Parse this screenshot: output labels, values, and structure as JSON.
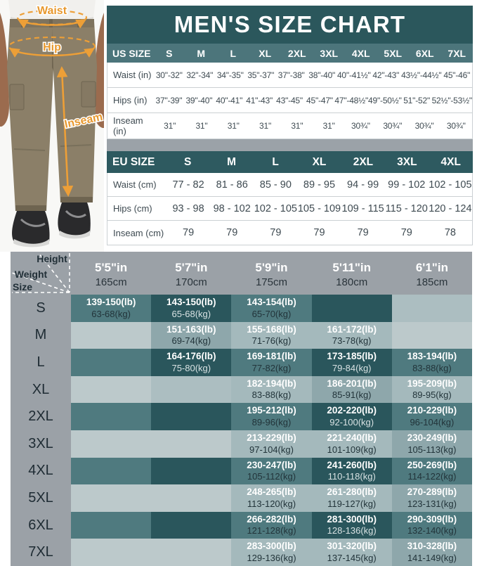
{
  "title": "MEN'S SIZE CHART",
  "photo": {
    "labels": {
      "waist": "Waist",
      "hip": "Hip",
      "inseam": "Inseam"
    },
    "annotation_color": "#ED9F37",
    "pants_color": "#8B7F68"
  },
  "us_table": {
    "header_label": "US SIZE",
    "sizes": [
      "S",
      "M",
      "L",
      "XL",
      "2XL",
      "3XL",
      "4XL",
      "5XL",
      "6XL",
      "7XL"
    ],
    "rows": [
      {
        "label": "Waist (in)",
        "values": [
          "30\"-32\"",
          "32\"-34\"",
          "34\"-35\"",
          "35\"-37\"",
          "37\"-38\"",
          "38\"-40\"",
          "40\"-41½\"",
          "42\"-43\"",
          "43½\"-44½\"",
          "45\"-46\""
        ]
      },
      {
        "label": "Hips (in)",
        "values": [
          "37\"-39\"",
          "39\"-40\"",
          "40\"-41\"",
          "41\"-43\"",
          "43\"-45\"",
          "45\"-47\"",
          "47\"-48½\"",
          "49\"-50½\"",
          "51\"-52\"",
          "52½\"-53½\""
        ]
      },
      {
        "label": "Inseam (in)",
        "values": [
          "31\"",
          "31\"",
          "31\"",
          "31\"",
          "31\"",
          "31\"",
          "30¾\"",
          "30¾\"",
          "30¾\"",
          "30¾\""
        ]
      }
    ]
  },
  "eu_table": {
    "header_label": "EU SIZE",
    "sizes": [
      "S",
      "M",
      "L",
      "XL",
      "2XL",
      "3XL",
      "4XL"
    ],
    "rows": [
      {
        "label": "Waist (cm)",
        "values": [
          "77 - 82",
          "81 - 86",
          "85 - 90",
          "89 - 95",
          "94 - 99",
          "99 - 102",
          "102 - 105"
        ]
      },
      {
        "label": "Hips (cm)",
        "values": [
          "93 - 98",
          "98 - 102",
          "102 - 105",
          "105 - 109",
          "109 - 115",
          "115 - 120",
          "120 - 124"
        ]
      },
      {
        "label": "Inseam (cm)",
        "values": [
          "79",
          "79",
          "79",
          "79",
          "79",
          "79",
          "78"
        ]
      }
    ]
  },
  "matrix": {
    "corner": {
      "height": "Height",
      "weight": "Weight",
      "size": "Size"
    },
    "columns": [
      {
        "ft": "5'5\"in",
        "cm": "165cm"
      },
      {
        "ft": "5'7\"in",
        "cm": "170cm"
      },
      {
        "ft": "5'9\"in",
        "cm": "175cm"
      },
      {
        "ft": "5'11\"in",
        "cm": "180cm"
      },
      {
        "ft": "6'1\"in",
        "cm": "185cm"
      }
    ],
    "rows": [
      {
        "label": "S",
        "cells": [
          {
            "lb": "139-150(lb)",
            "kg": "63-68(kg)",
            "tone": "mid"
          },
          {
            "lb": "143-150(lb)",
            "kg": "65-68(kg)",
            "tone": "dark"
          },
          {
            "lb": "143-154(lb)",
            "kg": "65-70(kg)",
            "tone": "mid"
          },
          {
            "tone": "dark"
          },
          {
            "tone": "light2"
          }
        ]
      },
      {
        "label": "M",
        "cells": [
          {
            "tone": "light"
          },
          {
            "lb": "151-163(lb)",
            "kg": "69-74(kg)",
            "tone": "mid2"
          },
          {
            "lb": "155-168(lb)",
            "kg": "71-76(kg)",
            "tone": "mlight"
          },
          {
            "lb": "161-172(lb)",
            "kg": "73-78(kg)",
            "tone": "mlight"
          },
          {
            "tone": "light"
          }
        ]
      },
      {
        "label": "L",
        "cells": [
          {
            "tone": "mid"
          },
          {
            "lb": "164-176(lb)",
            "kg": "75-80(kg)",
            "tone": "dark"
          },
          {
            "lb": "169-181(lb)",
            "kg": "77-82(kg)",
            "tone": "mid"
          },
          {
            "lb": "173-185(lb)",
            "kg": "79-84(kg)",
            "tone": "dark"
          },
          {
            "lb": "183-194(lb)",
            "kg": "83-88(kg)",
            "tone": "mid"
          }
        ]
      },
      {
        "label": "XL",
        "cells": [
          {
            "tone": "light"
          },
          {
            "tone": "light2"
          },
          {
            "lb": "182-194(lb)",
            "kg": "83-88(kg)",
            "tone": "mlight"
          },
          {
            "lb": "186-201(lb)",
            "kg": "85-91(kg)",
            "tone": "mid2"
          },
          {
            "lb": "195-209(lb)",
            "kg": "89-95(kg)",
            "tone": "mlight"
          }
        ]
      },
      {
        "label": "2XL",
        "cells": [
          {
            "tone": "mid"
          },
          {
            "tone": "dark"
          },
          {
            "lb": "195-212(lb)",
            "kg": "89-96(kg)",
            "tone": "mid"
          },
          {
            "lb": "202-220(lb)",
            "kg": "92-100(kg)",
            "tone": "dark"
          },
          {
            "lb": "210-229(lb)",
            "kg": "96-104(kg)",
            "tone": "mid"
          }
        ]
      },
      {
        "label": "3XL",
        "cells": [
          {
            "tone": "light"
          },
          {
            "tone": "light"
          },
          {
            "lb": "213-229(lb)",
            "kg": "97-104(kg)",
            "tone": "mlight"
          },
          {
            "lb": "221-240(lb)",
            "kg": "101-109(kg)",
            "tone": "mlight"
          },
          {
            "lb": "230-249(lb)",
            "kg": "105-113(kg)",
            "tone": "mid2"
          }
        ]
      },
      {
        "label": "4XL",
        "cells": [
          {
            "tone": "mid"
          },
          {
            "tone": "dark"
          },
          {
            "lb": "230-247(lb)",
            "kg": "105-112(kg)",
            "tone": "mid"
          },
          {
            "lb": "241-260(lb)",
            "kg": "110-118(kg)",
            "tone": "dark"
          },
          {
            "lb": "250-269(lb)",
            "kg": "114-122(kg)",
            "tone": "mid"
          }
        ]
      },
      {
        "label": "5XL",
        "cells": [
          {
            "tone": "light"
          },
          {
            "tone": "light"
          },
          {
            "lb": "248-265(lb)",
            "kg": "113-120(kg)",
            "tone": "mlight"
          },
          {
            "lb": "261-280(lb)",
            "kg": "119-127(kg)",
            "tone": "mlight"
          },
          {
            "lb": "270-289(lb)",
            "kg": "123-131(kg)",
            "tone": "mid2"
          }
        ]
      },
      {
        "label": "6XL",
        "cells": [
          {
            "tone": "mid"
          },
          {
            "tone": "dark"
          },
          {
            "lb": "266-282(lb)",
            "kg": "121-128(kg)",
            "tone": "mid"
          },
          {
            "lb": "281-300(lb)",
            "kg": "128-136(kg)",
            "tone": "dark"
          },
          {
            "lb": "290-309(lb)",
            "kg": "132-140(kg)",
            "tone": "mid"
          }
        ]
      },
      {
        "label": "7XL",
        "cells": [
          {
            "tone": "light"
          },
          {
            "tone": "light"
          },
          {
            "lb": "283-300(lb)",
            "kg": "129-136(kg)",
            "tone": "mlight"
          },
          {
            "lb": "301-320(lb)",
            "kg": "137-145(kg)",
            "tone": "mlight"
          },
          {
            "lb": "310-328(lb)",
            "kg": "141-149(kg)",
            "tone": "mid2"
          }
        ]
      }
    ]
  },
  "colors": {
    "header_teal": "#2B575C",
    "us_head_teal": "#4C757B",
    "eu_head_teal": "#2E5A60",
    "gray": "#9BA1A7",
    "cell_dark": "#2A565C",
    "cell_mid": "#4F7A7F",
    "cell_light": "#BCC9CB",
    "annotation_orange": "#ED9F37"
  }
}
